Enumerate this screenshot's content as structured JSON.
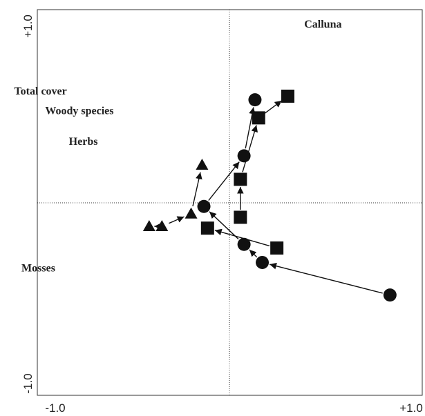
{
  "chart_data": {
    "type": "scatter",
    "xlim": [
      -1.0,
      1.0
    ],
    "ylim": [
      -1.0,
      1.0
    ],
    "x_ticks": [
      "-1.0",
      "+1.0"
    ],
    "y_ticks": [
      "-1.0",
      "+1.0"
    ],
    "grid": false,
    "reference_lines": {
      "x": 0,
      "y": 0
    },
    "variable_labels": [
      {
        "text": "Calluna",
        "x": 0.41,
        "y": 0.97
      },
      {
        "text": "Total cover",
        "x": -1.18,
        "y": 0.6
      },
      {
        "text": "Woody species",
        "x": -1.01,
        "y": 0.49
      },
      {
        "text": "Herbs",
        "x": -0.88,
        "y": 0.32
      },
      {
        "text": "Mosses",
        "x": -1.14,
        "y": -0.38
      }
    ],
    "series": [
      {
        "marker": "circle",
        "points": [
          {
            "x": 0.88,
            "y": -0.51
          },
          {
            "x": 0.18,
            "y": -0.33
          },
          {
            "x": 0.08,
            "y": -0.23
          },
          {
            "x": -0.14,
            "y": -0.02
          },
          {
            "x": 0.08,
            "y": 0.26
          },
          {
            "x": 0.14,
            "y": 0.57
          }
        ]
      },
      {
        "marker": "square",
        "points": [
          {
            "x": 0.26,
            "y": -0.25
          },
          {
            "x": -0.12,
            "y": -0.14
          },
          {
            "x": 0.06,
            "y": -0.08
          },
          {
            "x": 0.06,
            "y": 0.13
          },
          {
            "x": 0.16,
            "y": 0.47
          },
          {
            "x": 0.32,
            "y": 0.59
          }
        ]
      },
      {
        "marker": "triangle",
        "points": [
          {
            "x": -0.44,
            "y": -0.13
          },
          {
            "x": -0.37,
            "y": -0.13
          },
          {
            "x": -0.21,
            "y": -0.06
          },
          {
            "x": -0.15,
            "y": 0.21
          }
        ]
      }
    ],
    "trajectories": [
      [
        [
          0.88,
          -0.51
        ],
        [
          0.18,
          -0.33
        ]
      ],
      [
        [
          0.18,
          -0.33
        ],
        [
          0.08,
          -0.23
        ]
      ],
      [
        [
          0.08,
          -0.23
        ],
        [
          -0.14,
          -0.02
        ]
      ],
      [
        [
          -0.14,
          -0.02
        ],
        [
          0.08,
          0.26
        ]
      ],
      [
        [
          0.08,
          0.26
        ],
        [
          0.14,
          0.57
        ]
      ],
      [
        [
          0.26,
          -0.25
        ],
        [
          -0.12,
          -0.14
        ]
      ],
      [
        [
          0.06,
          -0.08
        ],
        [
          0.06,
          0.13
        ]
      ],
      [
        [
          0.06,
          0.13
        ],
        [
          0.16,
          0.47
        ]
      ],
      [
        [
          0.16,
          0.47
        ],
        [
          0.32,
          0.59
        ]
      ],
      [
        [
          -0.44,
          -0.13
        ],
        [
          -0.37,
          -0.13
        ]
      ],
      [
        [
          -0.37,
          -0.13
        ],
        [
          -0.21,
          -0.06
        ]
      ],
      [
        [
          -0.21,
          -0.06
        ],
        [
          -0.15,
          0.21
        ]
      ]
    ],
    "colors": {
      "ink": "#111111",
      "axis": "#333333"
    }
  }
}
